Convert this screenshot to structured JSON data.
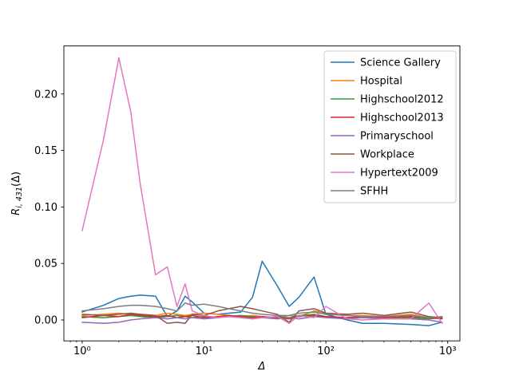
{
  "figure": {
    "background": "#ffffff"
  },
  "chart_data": {
    "type": "line",
    "x_scale": "log",
    "xlabel": "Δ",
    "ylabel": "R_{i, 431}(Δ)",
    "ylabel_parts": {
      "base": "R",
      "sub": "i, 431",
      "rest": "(Δ)"
    },
    "x_tick_labels": [
      "10⁰",
      "10¹",
      "10²",
      "10³"
    ],
    "x_tick_values": [
      1,
      10,
      100,
      1000
    ],
    "y_tick_labels": [
      "0.00",
      "0.05",
      "0.10",
      "0.15",
      "0.20"
    ],
    "y_tick_values": [
      0.0,
      0.05,
      0.1,
      0.15,
      0.2
    ],
    "xlim_log": [
      -0.15,
      3.1
    ],
    "ylim": [
      -0.0185,
      0.2425
    ],
    "grid": false,
    "legend_position": "upper right",
    "x": [
      1,
      1.5,
      2,
      2.5,
      3,
      4,
      5,
      6,
      7,
      8,
      10,
      13,
      16,
      20,
      25,
      30,
      40,
      50,
      60,
      80,
      100,
      150,
      200,
      300,
      500,
      700,
      900
    ],
    "series": [
      {
        "name": "Science Gallery",
        "color": "#1f77b4",
        "values": [
          0.007,
          0.013,
          0.019,
          0.021,
          0.022,
          0.021,
          0.003,
          0.008,
          0.021,
          0.016,
          0.006,
          0.005,
          0.006,
          0.007,
          0.02,
          0.052,
          0.03,
          0.012,
          0.02,
          0.038,
          0.005,
          0.0,
          -0.003,
          -0.003,
          -0.004,
          -0.005,
          -0.002
        ]
      },
      {
        "name": "Hospital",
        "color": "#ff7f0e",
        "values": [
          0.004,
          0.005,
          0.006,
          0.005,
          0.005,
          0.004,
          0.006,
          0.005,
          0.004,
          0.005,
          0.006,
          0.005,
          0.004,
          0.003,
          0.004,
          0.003,
          0.002,
          0.004,
          0.003,
          0.008,
          0.006,
          0.004,
          0.004,
          0.003,
          0.005,
          0.002,
          0.002
        ]
      },
      {
        "name": "Highschool2012",
        "color": "#2ca02c",
        "values": [
          0.003,
          0.002,
          0.003,
          0.004,
          0.003,
          0.002,
          0.003,
          0.004,
          0.003,
          0.002,
          0.003,
          0.002,
          0.003,
          0.004,
          0.003,
          0.002,
          0.003,
          0.002,
          0.004,
          0.005,
          0.003,
          0.002,
          0.003,
          0.002,
          0.002,
          0.001,
          0.002
        ]
      },
      {
        "name": "Highschool2013",
        "color": "#d62728",
        "values": [
          0.002,
          0.004,
          0.003,
          0.005,
          0.004,
          0.003,
          0.004,
          0.002,
          0.003,
          0.004,
          0.002,
          0.003,
          0.004,
          0.003,
          0.002,
          0.003,
          0.002,
          0.001,
          0.003,
          0.004,
          0.003,
          0.002,
          0.003,
          0.002,
          0.003,
          0.002,
          0.001
        ]
      },
      {
        "name": "Primaryschool",
        "color": "#9467bd",
        "values": [
          -0.002,
          -0.003,
          -0.002,
          0.0,
          0.001,
          0.002,
          0.001,
          0.002,
          0.001,
          0.002,
          0.001,
          0.002,
          0.003,
          0.002,
          0.001,
          0.002,
          0.001,
          0.002,
          0.001,
          0.003,
          0.002,
          0.001,
          0.002,
          0.001,
          0.001,
          0.0,
          -0.002
        ]
      },
      {
        "name": "Workplace",
        "color": "#8c564b",
        "values": [
          0.005,
          0.004,
          0.005,
          0.006,
          0.005,
          0.004,
          -0.003,
          -0.002,
          -0.003,
          0.005,
          0.004,
          0.008,
          0.01,
          0.012,
          0.01,
          0.008,
          0.005,
          -0.002,
          0.008,
          0.01,
          0.006,
          0.005,
          0.006,
          0.004,
          0.007,
          0.003,
          0.002
        ]
      },
      {
        "name": "Hypertext2009",
        "color": "#e377c2",
        "values": [
          0.079,
          0.16,
          0.232,
          0.185,
          0.12,
          0.04,
          0.047,
          0.012,
          0.032,
          0.008,
          0.004,
          0.002,
          0.003,
          0.002,
          0.001,
          0.002,
          0.003,
          -0.003,
          0.004,
          0.002,
          0.012,
          0.001,
          0.0,
          0.001,
          0.001,
          0.015,
          -0.003
        ]
      },
      {
        "name": "SFHH",
        "color": "#7f7f7f",
        "values": [
          0.008,
          0.01,
          0.012,
          0.013,
          0.013,
          0.012,
          0.01,
          0.008,
          0.015,
          0.013,
          0.014,
          0.012,
          0.01,
          0.008,
          0.006,
          0.005,
          0.004,
          0.004,
          0.006,
          0.007,
          0.005,
          0.004,
          0.003,
          0.003,
          0.004,
          0.002,
          0.003
        ]
      }
    ]
  }
}
